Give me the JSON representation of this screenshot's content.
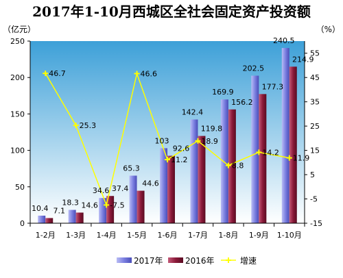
{
  "chart_data": {
    "type": "bar",
    "title": "2017年1-10月西城区全社会固定资产投资额",
    "y_left_unit": "（亿元）",
    "y_right_unit": "（%）",
    "categories": [
      "1-2月",
      "1-3月",
      "1-4月",
      "1-5月",
      "1-6月",
      "1-7月",
      "1-8月",
      "1-9月",
      "1-10月"
    ],
    "series": [
      {
        "name": "2017年",
        "type": "bar",
        "axis": "left",
        "values": [
          10.4,
          18.3,
          34.6,
          65.3,
          103,
          142.4,
          169.9,
          202.5,
          240.5
        ],
        "color": "#7b7fe0"
      },
      {
        "name": "2016年",
        "type": "bar",
        "axis": "left",
        "values": [
          7.1,
          14.6,
          37.4,
          44.6,
          92.6,
          119.8,
          156.2,
          177.3,
          214.9
        ],
        "color": "#8b1a3a"
      },
      {
        "name": "增速",
        "type": "line",
        "axis": "right",
        "values": [
          46.7,
          25.3,
          -7.5,
          46.6,
          11.2,
          18.9,
          8.8,
          14.2,
          11.9
        ],
        "color": "#ffff00"
      }
    ],
    "y_left": {
      "min": 0,
      "max": 250,
      "ticks": [
        "0",
        "50",
        "100",
        "150",
        "200",
        "250"
      ]
    },
    "y_right": {
      "min": -15,
      "max": 60,
      "ticks": [
        "-15",
        "-5",
        "5",
        "15",
        "25",
        "35",
        "45",
        "55"
      ]
    },
    "legend": {
      "position": "bottom",
      "items": [
        "2017年",
        "2016年",
        "增速"
      ]
    },
    "grid": false
  }
}
